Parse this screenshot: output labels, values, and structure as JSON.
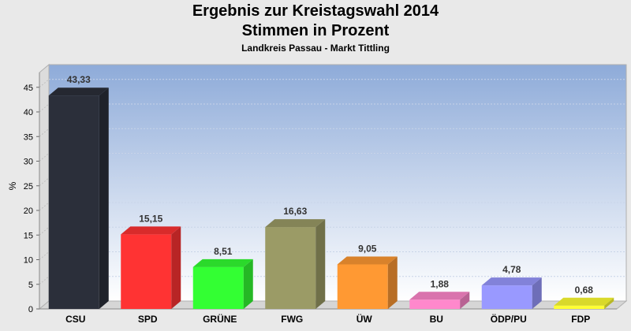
{
  "header": {
    "title": "Ergebnis zur Kreistagswahl 2014",
    "subtitle": "Stimmen in Prozent",
    "caption": "Landkreis Passau - Markt Tittling"
  },
  "chart_data": {
    "type": "bar",
    "categories": [
      "CSU",
      "SPD",
      "GRÜNE",
      "FWG",
      "ÜW",
      "BU",
      "ÖDP/PU",
      "FDP"
    ],
    "values": [
      43.33,
      15.15,
      8.51,
      16.63,
      9.05,
      1.88,
      4.78,
      0.68
    ],
    "value_labels": [
      "43,33",
      "15,15",
      "8,51",
      "16,63",
      "9,05",
      "1,88",
      "4,78",
      "0,68"
    ],
    "colors": [
      "#2b2f3a",
      "#ff3333",
      "#33ff33",
      "#9b9b66",
      "#ff9933",
      "#ff88cc",
      "#9999ff",
      "#ffff33"
    ],
    "ylabel": "%",
    "xlabel": "",
    "ylim": [
      0,
      48
    ],
    "yticks": [
      0,
      5,
      10,
      15,
      20,
      25,
      30,
      35,
      40,
      45
    ],
    "grid": true,
    "legend": "none"
  }
}
